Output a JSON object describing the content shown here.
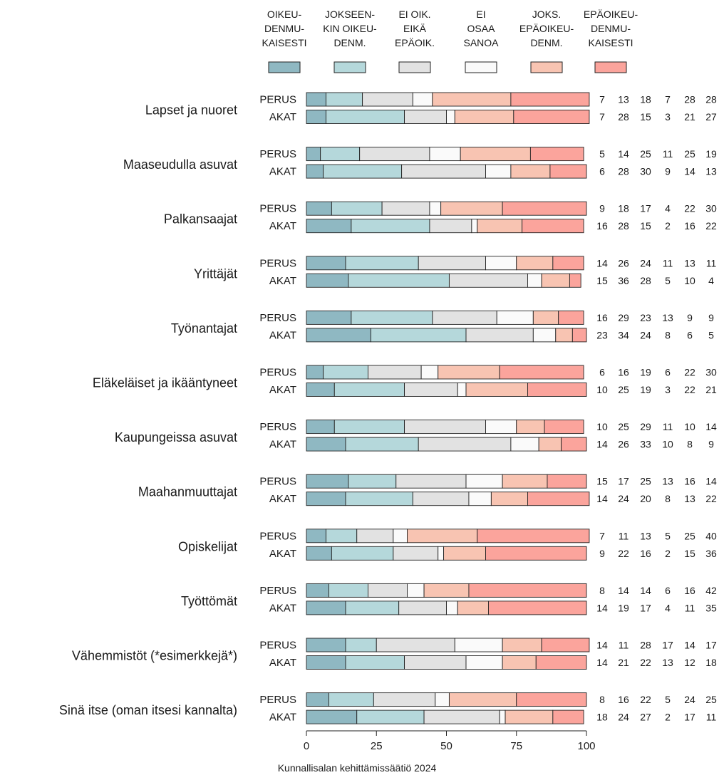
{
  "colors": [
    "#8fb8c2",
    "#b5d8db",
    "#e2e2e2",
    "#fafafa",
    "#f8c4b2",
    "#fba49c"
  ],
  "chart_data": {
    "type": "bar",
    "orientation": "horizontal",
    "stacked": true,
    "xlim": [
      0,
      100
    ],
    "xticks": [
      "0",
      "25",
      "50",
      "75",
      "100"
    ],
    "legend": [
      [
        "OIKEU-",
        "DENMU-",
        "KAISESTI"
      ],
      [
        "JOKSEEN-",
        "KIN OIKEU-",
        "DENM."
      ],
      [
        "EI OIK.",
        "EIKÄ",
        "EPÄOIK."
      ],
      [
        "EI",
        "OSAA",
        "SANOA"
      ],
      [
        "JOKS.",
        "EPÄOIKEU-",
        "DENM."
      ],
      [
        "EPÄOIKEU-",
        "DENMU-",
        "KAISESTI"
      ]
    ],
    "groups": [
      {
        "label": "Lapset ja nuoret",
        "rows": [
          {
            "name": "PERUS",
            "values": [
              7,
              13,
              18,
              7,
              28,
              28
            ]
          },
          {
            "name": "AKAT",
            "values": [
              7,
              28,
              15,
              3,
              21,
              27
            ]
          }
        ]
      },
      {
        "label": "Maaseudulla asuvat",
        "rows": [
          {
            "name": "PERUS",
            "values": [
              5,
              14,
              25,
              11,
              25,
              19
            ]
          },
          {
            "name": "AKAT",
            "values": [
              6,
              28,
              30,
              9,
              14,
              13
            ]
          }
        ]
      },
      {
        "label": "Palkansaajat",
        "rows": [
          {
            "name": "PERUS",
            "values": [
              9,
              18,
              17,
              4,
              22,
              30
            ]
          },
          {
            "name": "AKAT",
            "values": [
              16,
              28,
              15,
              2,
              16,
              22
            ]
          }
        ]
      },
      {
        "label": "Yrittäjät",
        "rows": [
          {
            "name": "PERUS",
            "values": [
              14,
              26,
              24,
              11,
              13,
              11
            ]
          },
          {
            "name": "AKAT",
            "values": [
              15,
              36,
              28,
              5,
              10,
              4
            ]
          }
        ]
      },
      {
        "label": "Työnantajat",
        "rows": [
          {
            "name": "PERUS",
            "values": [
              16,
              29,
              23,
              13,
              9,
              9
            ]
          },
          {
            "name": "AKAT",
            "values": [
              23,
              34,
              24,
              8,
              6,
              5
            ]
          }
        ]
      },
      {
        "label": "Eläkeläiset ja ikääntyneet",
        "rows": [
          {
            "name": "PERUS",
            "values": [
              6,
              16,
              19,
              6,
              22,
              30
            ]
          },
          {
            "name": "AKAT",
            "values": [
              10,
              25,
              19,
              3,
              22,
              21
            ]
          }
        ]
      },
      {
        "label": "Kaupungeissa asuvat",
        "rows": [
          {
            "name": "PERUS",
            "values": [
              10,
              25,
              29,
              11,
              10,
              14
            ]
          },
          {
            "name": "AKAT",
            "values": [
              14,
              26,
              33,
              10,
              8,
              9
            ]
          }
        ]
      },
      {
        "label": "Maahanmuuttajat",
        "rows": [
          {
            "name": "PERUS",
            "values": [
              15,
              17,
              25,
              13,
              16,
              14
            ]
          },
          {
            "name": "AKAT",
            "values": [
              14,
              24,
              20,
              8,
              13,
              22
            ]
          }
        ]
      },
      {
        "label": "Opiskelijat",
        "rows": [
          {
            "name": "PERUS",
            "values": [
              7,
              11,
              13,
              5,
              25,
              40
            ]
          },
          {
            "name": "AKAT",
            "values": [
              9,
              22,
              16,
              2,
              15,
              36
            ]
          }
        ]
      },
      {
        "label": "Työttömät",
        "rows": [
          {
            "name": "PERUS",
            "values": [
              8,
              14,
              14,
              6,
              16,
              42
            ]
          },
          {
            "name": "AKAT",
            "values": [
              14,
              19,
              17,
              4,
              11,
              35
            ]
          }
        ]
      },
      {
        "label": "Vähemmistöt (*esimerkkejä*)",
        "rows": [
          {
            "name": "PERUS",
            "values": [
              14,
              11,
              28,
              17,
              14,
              17
            ]
          },
          {
            "name": "AKAT",
            "values": [
              14,
              21,
              22,
              13,
              12,
              18
            ]
          }
        ]
      },
      {
        "label": "Sinä itse (oman itsesi kannalta)",
        "rows": [
          {
            "name": "PERUS",
            "values": [
              8,
              16,
              22,
              5,
              24,
              25
            ]
          },
          {
            "name": "AKAT",
            "values": [
              18,
              24,
              27,
              2,
              17,
              11
            ]
          }
        ]
      }
    ],
    "caption": "Kunnallisalan kehittämissäätiö 2024"
  }
}
